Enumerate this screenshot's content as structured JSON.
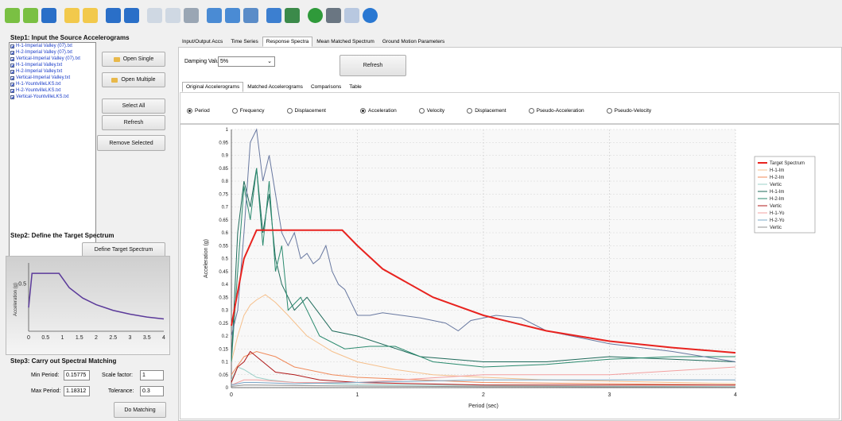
{
  "left": {
    "step1_title": "Step1: Input the Source Accelerograms",
    "files": [
      "H-1-Imperial Valley (07).txt",
      "H-2-Imperial Valley (07).txt",
      "Vertical-Imperial Valley (07).txt",
      "H-1-Imperial Valley.txt",
      "H-2-Imperial Valley.txt",
      "Vertical-Imperial Valley.txt",
      "H-1-YountvilleLKS.txt",
      "H-2-YountvilleLKS.txt",
      "Vertical-YountvilleLKS.txt"
    ],
    "open_single": "Open Single",
    "open_multiple": "Open Multiple",
    "select_all": "Select All",
    "refresh": "Refresh",
    "remove_selected": "Remove Selected",
    "step2_title": "Step2: Define the Target Spectrum",
    "define_target": "Define Target Spectrum",
    "step3_title": "Step3: Carry out Spectral Matching",
    "min_period_label": "Min Period:",
    "min_period": "0.15775",
    "max_period_label": "Max Period:",
    "max_period": "1.18312",
    "scale_label": "Scale factor:",
    "scale": "1",
    "tol_label": "Tolerance:",
    "tol": "0.3",
    "do_matching": "Do Matching"
  },
  "mini_chart": {
    "ylabel": "Acceleration (g)",
    "ytick": "0.5",
    "xticks": [
      "0",
      "0.5",
      "1",
      "1.5",
      "2",
      "2.5",
      "3",
      "3.5",
      "4"
    ],
    "line_color": "#5b3a9a",
    "points": [
      [
        0,
        0.25
      ],
      [
        0.1,
        0.61
      ],
      [
        0.45,
        0.61
      ],
      [
        0.9,
        0.61
      ],
      [
        1.2,
        0.46
      ],
      [
        1.6,
        0.35
      ],
      [
        2,
        0.28
      ],
      [
        2.5,
        0.22
      ],
      [
        3,
        0.18
      ],
      [
        3.5,
        0.15
      ],
      [
        4,
        0.13
      ]
    ],
    "xmax": 4,
    "ymax": 0.72
  },
  "main": {
    "tabs": [
      "Input/Output Accs",
      "Time Series",
      "Response Spectra",
      "Mean Matched Spectrum",
      "Ground Motion Parameters"
    ],
    "active_tab": 2,
    "damping_label": "Damping Value",
    "damping_value": "5%",
    "refresh": "Refresh",
    "subtabs": [
      "Original Accelerograms",
      "Matched Accelerograms",
      "Comparisons",
      "Table"
    ],
    "active_subtab": 0,
    "xopts": [
      "Period",
      "Frequency",
      "Displacement"
    ],
    "yopts": [
      "Acceleration",
      "Velocity",
      "Displacement",
      "Pseudo-Acceleration",
      "Pseudo-Velocity"
    ]
  },
  "chart_data": {
    "type": "line",
    "xlabel": "Period (sec)",
    "ylabel": "Acceleration (g)",
    "xlim": [
      0,
      4
    ],
    "ylim": [
      0,
      1
    ],
    "xticks": [
      0,
      1,
      2,
      3,
      4
    ],
    "yticks": [
      0,
      0.05,
      0.1,
      0.15,
      0.2,
      0.25,
      0.3,
      0.35,
      0.4,
      0.45,
      0.5,
      0.55,
      0.6,
      0.65,
      0.7,
      0.75,
      0.8,
      0.85,
      0.9,
      0.95,
      1
    ],
    "legend": "right",
    "series": [
      {
        "name": "Target Spectrum",
        "color": "#e8231f",
        "width": 2,
        "x": [
          0,
          0.1,
          0.2,
          0.45,
          0.88,
          1.0,
          1.2,
          1.6,
          2,
          2.5,
          3,
          3.5,
          4
        ],
        "y": [
          0.24,
          0.5,
          0.61,
          0.61,
          0.61,
          0.55,
          0.46,
          0.35,
          0.28,
          0.22,
          0.18,
          0.155,
          0.135
        ]
      },
      {
        "name": "H-1-Im",
        "color": "#f6c08c",
        "width": 1,
        "x": [
          0,
          0.05,
          0.1,
          0.15,
          0.2,
          0.27,
          0.35,
          0.45,
          0.6,
          0.8,
          1.0,
          1.3,
          1.6,
          2,
          2.5,
          3,
          3.5,
          4
        ],
        "y": [
          0.1,
          0.2,
          0.28,
          0.32,
          0.34,
          0.36,
          0.33,
          0.28,
          0.2,
          0.14,
          0.1,
          0.07,
          0.05,
          0.04,
          0.03,
          0.025,
          0.02,
          0.015
        ]
      },
      {
        "name": "H-2-Im",
        "color": "#f08a5a",
        "width": 1,
        "x": [
          0,
          0.1,
          0.2,
          0.35,
          0.5,
          0.8,
          1,
          1.5,
          2,
          3,
          4
        ],
        "y": [
          0.05,
          0.12,
          0.14,
          0.12,
          0.08,
          0.05,
          0.04,
          0.03,
          0.02,
          0.015,
          0.01
        ]
      },
      {
        "name": "Vertic",
        "color": "#9bd0c8",
        "width": 1,
        "x": [
          0,
          0.05,
          0.1,
          0.2,
          0.3,
          0.5,
          1,
          2,
          3,
          4
        ],
        "y": [
          0.03,
          0.08,
          0.07,
          0.04,
          0.03,
          0.02,
          0.012,
          0.008,
          0.005,
          0.004
        ]
      },
      {
        "name": "H-1-Im",
        "color": "#1e6a5a",
        "width": 1,
        "x": [
          0,
          0.05,
          0.1,
          0.15,
          0.2,
          0.25,
          0.3,
          0.35,
          0.4,
          0.5,
          0.6,
          0.8,
          1,
          1.5,
          2,
          2.5,
          3,
          3.5,
          4
        ],
        "y": [
          0.1,
          0.6,
          0.8,
          0.7,
          0.85,
          0.6,
          0.75,
          0.5,
          0.4,
          0.3,
          0.35,
          0.22,
          0.2,
          0.12,
          0.1,
          0.1,
          0.12,
          0.11,
          0.1
        ]
      },
      {
        "name": "H-2-Im",
        "color": "#2a8a6e",
        "width": 1,
        "x": [
          0,
          0.05,
          0.1,
          0.15,
          0.2,
          0.25,
          0.3,
          0.35,
          0.4,
          0.45,
          0.55,
          0.7,
          0.9,
          1.1,
          1.3,
          1.6,
          2,
          2.5,
          3,
          3.5,
          4
        ],
        "y": [
          0.1,
          0.45,
          0.78,
          0.65,
          0.85,
          0.55,
          0.8,
          0.45,
          0.55,
          0.3,
          0.35,
          0.2,
          0.15,
          0.16,
          0.16,
          0.1,
          0.08,
          0.09,
          0.11,
          0.12,
          0.12
        ]
      },
      {
        "name": "Vertic",
        "color": "#b01818",
        "width": 1,
        "x": [
          0,
          0.05,
          0.1,
          0.15,
          0.2,
          0.25,
          0.35,
          0.5,
          0.7,
          1,
          1.5,
          2,
          3,
          4
        ],
        "y": [
          0.02,
          0.08,
          0.1,
          0.14,
          0.12,
          0.1,
          0.06,
          0.05,
          0.03,
          0.02,
          0.015,
          0.01,
          0.01,
          0.01
        ]
      },
      {
        "name": "H-1-Yo",
        "color": "#f3a0a0",
        "width": 1,
        "x": [
          0,
          0.1,
          0.2,
          0.5,
          1,
          2,
          3,
          4
        ],
        "y": [
          0.01,
          0.03,
          0.03,
          0.02,
          0.02,
          0.05,
          0.05,
          0.08
        ]
      },
      {
        "name": "H-2-Yo",
        "color": "#7ea8c8",
        "width": 1,
        "x": [
          0,
          0.1,
          0.2,
          0.5,
          1,
          2,
          3,
          4
        ],
        "y": [
          0.01,
          0.02,
          0.02,
          0.015,
          0.02,
          0.03,
          0.03,
          0.03
        ]
      },
      {
        "name": "Vertic",
        "color": "#909090",
        "width": 1,
        "x": [
          0,
          0.1,
          0.2,
          0.5,
          1,
          2,
          3,
          4
        ],
        "y": [
          0.005,
          0.01,
          0.01,
          0.008,
          0.006,
          0.004,
          0.003,
          0.002
        ]
      },
      {
        "name": "",
        "color": "#6878a0",
        "width": 1,
        "x": [
          0,
          0.05,
          0.1,
          0.15,
          0.2,
          0.25,
          0.3,
          0.35,
          0.4,
          0.45,
          0.5,
          0.55,
          0.6,
          0.65,
          0.7,
          0.75,
          0.8,
          0.85,
          0.9,
          1,
          1.1,
          1.2,
          1.35,
          1.5,
          1.7,
          1.8,
          1.9,
          2.1,
          2.3,
          2.5,
          2.7,
          3,
          3.5,
          4
        ],
        "y": [
          0.2,
          0.3,
          0.6,
          0.95,
          1.0,
          0.8,
          0.9,
          0.75,
          0.6,
          0.55,
          0.6,
          0.5,
          0.52,
          0.48,
          0.5,
          0.55,
          0.45,
          0.4,
          0.38,
          0.28,
          0.28,
          0.29,
          0.28,
          0.27,
          0.25,
          0.22,
          0.26,
          0.28,
          0.27,
          0.22,
          0.2,
          0.17,
          0.14,
          0.1
        ]
      }
    ]
  }
}
